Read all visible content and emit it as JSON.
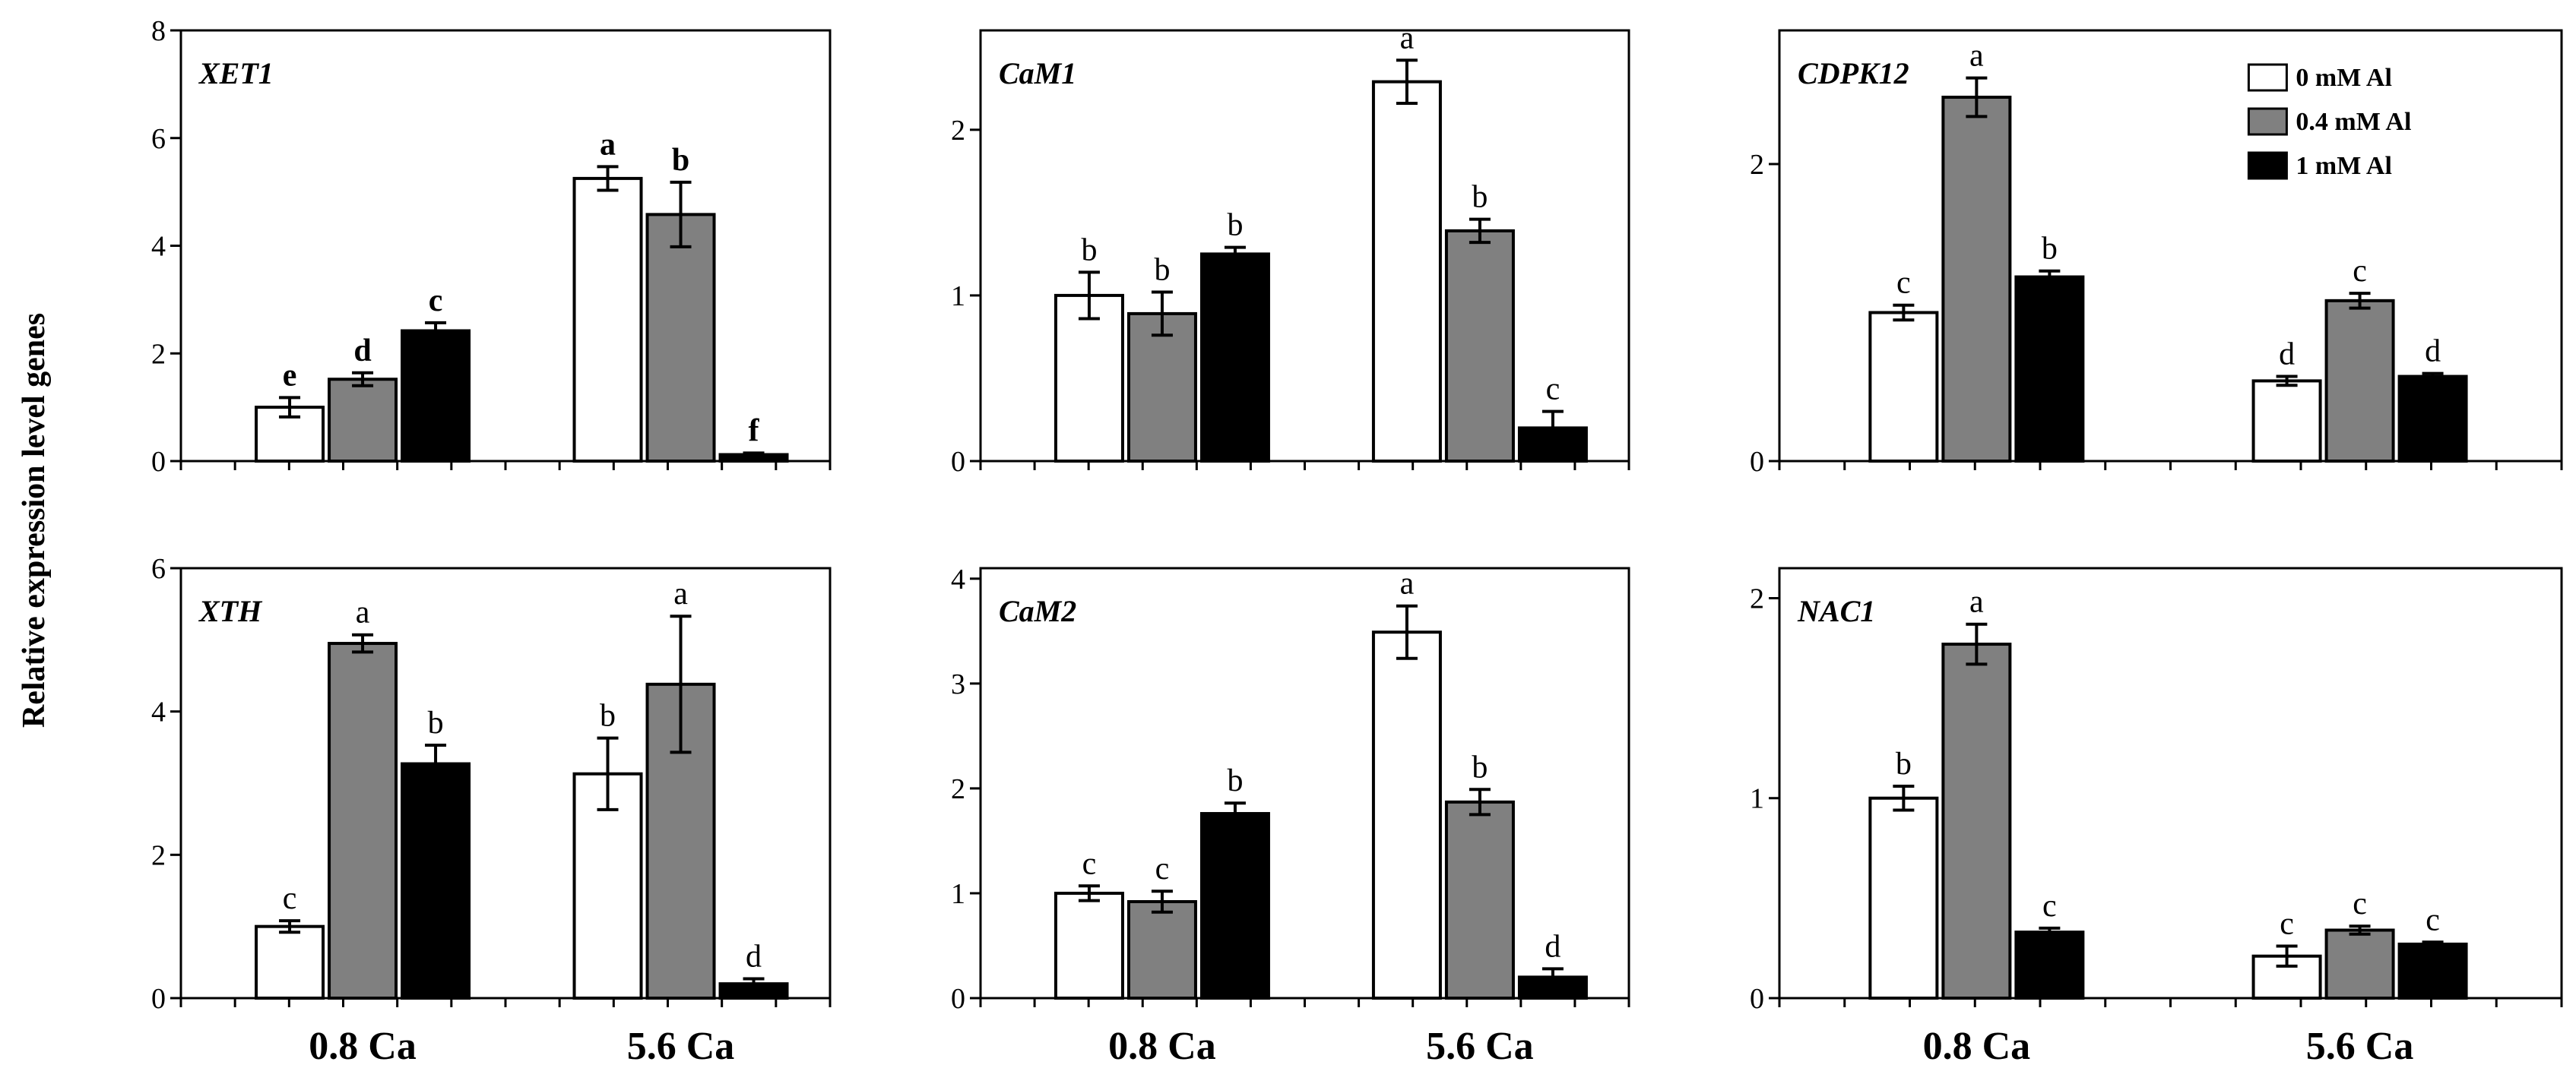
{
  "figure": {
    "ylabel": "Relative expression level genes"
  },
  "chart_data": [
    {
      "type": "bar",
      "gene": "XET1",
      "categories": [
        "0.8 Ca",
        "5.6 Ca"
      ],
      "ylim": [
        0,
        8
      ],
      "yticks": [
        0,
        2,
        4,
        6,
        8
      ],
      "series": [
        {
          "name": "0 mM Al",
          "color": "#ffffff",
          "values": [
            1.0,
            5.25
          ],
          "errors": [
            0.18,
            0.22
          ],
          "letters": [
            "e",
            "a"
          ]
        },
        {
          "name": "0.4 mM Al",
          "color": "#808080",
          "values": [
            1.52,
            4.58
          ],
          "errors": [
            0.12,
            0.6
          ],
          "letters": [
            "d",
            "b"
          ]
        },
        {
          "name": "1 mM Al",
          "color": "#000000",
          "values": [
            2.42,
            0.12
          ],
          "errors": [
            0.15,
            0.03
          ],
          "letters": [
            "c",
            "f"
          ]
        }
      ],
      "letters_bold": true
    },
    {
      "type": "bar",
      "gene": "CaM1",
      "categories": [
        "0.8 Ca",
        "5.6 Ca"
      ],
      "ylim": [
        0,
        2.6
      ],
      "yticks": [
        0,
        1,
        2
      ],
      "series": [
        {
          "name": "0 mM Al",
          "color": "#ffffff",
          "values": [
            1.0,
            2.29
          ],
          "errors": [
            0.14,
            0.13
          ],
          "letters": [
            "b",
            "a"
          ]
        },
        {
          "name": "0.4 mM Al",
          "color": "#808080",
          "values": [
            0.89,
            1.39
          ],
          "errors": [
            0.13,
            0.07
          ],
          "letters": [
            "b",
            "b"
          ]
        },
        {
          "name": "1 mM Al",
          "color": "#000000",
          "values": [
            1.25,
            0.2
          ],
          "errors": [
            0.04,
            0.1
          ],
          "letters": [
            "b",
            "c"
          ]
        }
      ],
      "letters_bold": false
    },
    {
      "type": "bar",
      "gene": "CDPK12",
      "categories": [
        "0.8 Ca",
        "5.6 Ca"
      ],
      "ylim": [
        0,
        2.9
      ],
      "yticks": [
        0,
        2
      ],
      "series": [
        {
          "name": "0 mM Al",
          "color": "#ffffff",
          "values": [
            1.0,
            0.54
          ],
          "errors": [
            0.05,
            0.03
          ],
          "letters": [
            "c",
            "d"
          ]
        },
        {
          "name": "0.4 mM Al",
          "color": "#808080",
          "values": [
            2.45,
            1.08
          ],
          "errors": [
            0.13,
            0.05
          ],
          "letters": [
            "a",
            "c"
          ]
        },
        {
          "name": "1 mM Al",
          "color": "#000000",
          "values": [
            1.24,
            0.57
          ],
          "errors": [
            0.04,
            0.02
          ],
          "letters": [
            "b",
            "d"
          ]
        }
      ],
      "letters_bold": false,
      "legend": {
        "position": "top-right",
        "entries": [
          "0 mM Al",
          "0.4 mM Al",
          "1 mM Al"
        ]
      }
    },
    {
      "type": "bar",
      "gene": "XTH",
      "categories": [
        "0.8 Ca",
        "5.6 Ca"
      ],
      "xlabels_shown": true,
      "ylim": [
        0,
        6
      ],
      "yticks": [
        0,
        2,
        4,
        6
      ],
      "series": [
        {
          "name": "0 mM Al",
          "color": "#ffffff",
          "values": [
            1.0,
            3.13
          ],
          "errors": [
            0.08,
            0.5
          ],
          "letters": [
            "c",
            "b"
          ]
        },
        {
          "name": "0.4 mM Al",
          "color": "#808080",
          "values": [
            4.95,
            4.38
          ],
          "errors": [
            0.12,
            0.95
          ],
          "letters": [
            "a",
            "a"
          ]
        },
        {
          "name": "1 mM Al",
          "color": "#000000",
          "values": [
            3.27,
            0.2
          ],
          "errors": [
            0.26,
            0.07
          ],
          "letters": [
            "b",
            "d"
          ]
        }
      ],
      "letters_bold": false
    },
    {
      "type": "bar",
      "gene": "CaM2",
      "categories": [
        "0.8 Ca",
        "5.6 Ca"
      ],
      "xlabels_shown": true,
      "ylim": [
        0,
        4.1
      ],
      "yticks": [
        0,
        1,
        2,
        3,
        4
      ],
      "series": [
        {
          "name": "0 mM Al",
          "color": "#ffffff",
          "values": [
            1.0,
            3.49
          ],
          "errors": [
            0.07,
            0.25
          ],
          "letters": [
            "c",
            "a"
          ]
        },
        {
          "name": "0.4 mM Al",
          "color": "#808080",
          "values": [
            0.92,
            1.87
          ],
          "errors": [
            0.1,
            0.12
          ],
          "letters": [
            "c",
            "b"
          ]
        },
        {
          "name": "1 mM Al",
          "color": "#000000",
          "values": [
            1.76,
            0.2
          ],
          "errors": [
            0.1,
            0.08
          ],
          "letters": [
            "b",
            "d"
          ]
        }
      ],
      "letters_bold": false
    },
    {
      "type": "bar",
      "gene": "NAC1",
      "categories": [
        "0.8 Ca",
        "5.6 Ca"
      ],
      "xlabels_shown": true,
      "ylim": [
        0,
        2.15
      ],
      "yticks": [
        0,
        1,
        2
      ],
      "series": [
        {
          "name": "0 mM Al",
          "color": "#ffffff",
          "values": [
            1.0,
            0.21
          ],
          "errors": [
            0.06,
            0.05
          ],
          "letters": [
            "b",
            "c"
          ]
        },
        {
          "name": "0.4 mM Al",
          "color": "#808080",
          "values": [
            1.77,
            0.34
          ],
          "errors": [
            0.1,
            0.02
          ],
          "letters": [
            "a",
            "c"
          ]
        },
        {
          "name": "1 mM Al",
          "color": "#000000",
          "values": [
            0.33,
            0.27
          ],
          "errors": [
            0.02,
            0.01
          ],
          "letters": [
            "c",
            "c"
          ]
        }
      ],
      "letters_bold": false
    }
  ]
}
